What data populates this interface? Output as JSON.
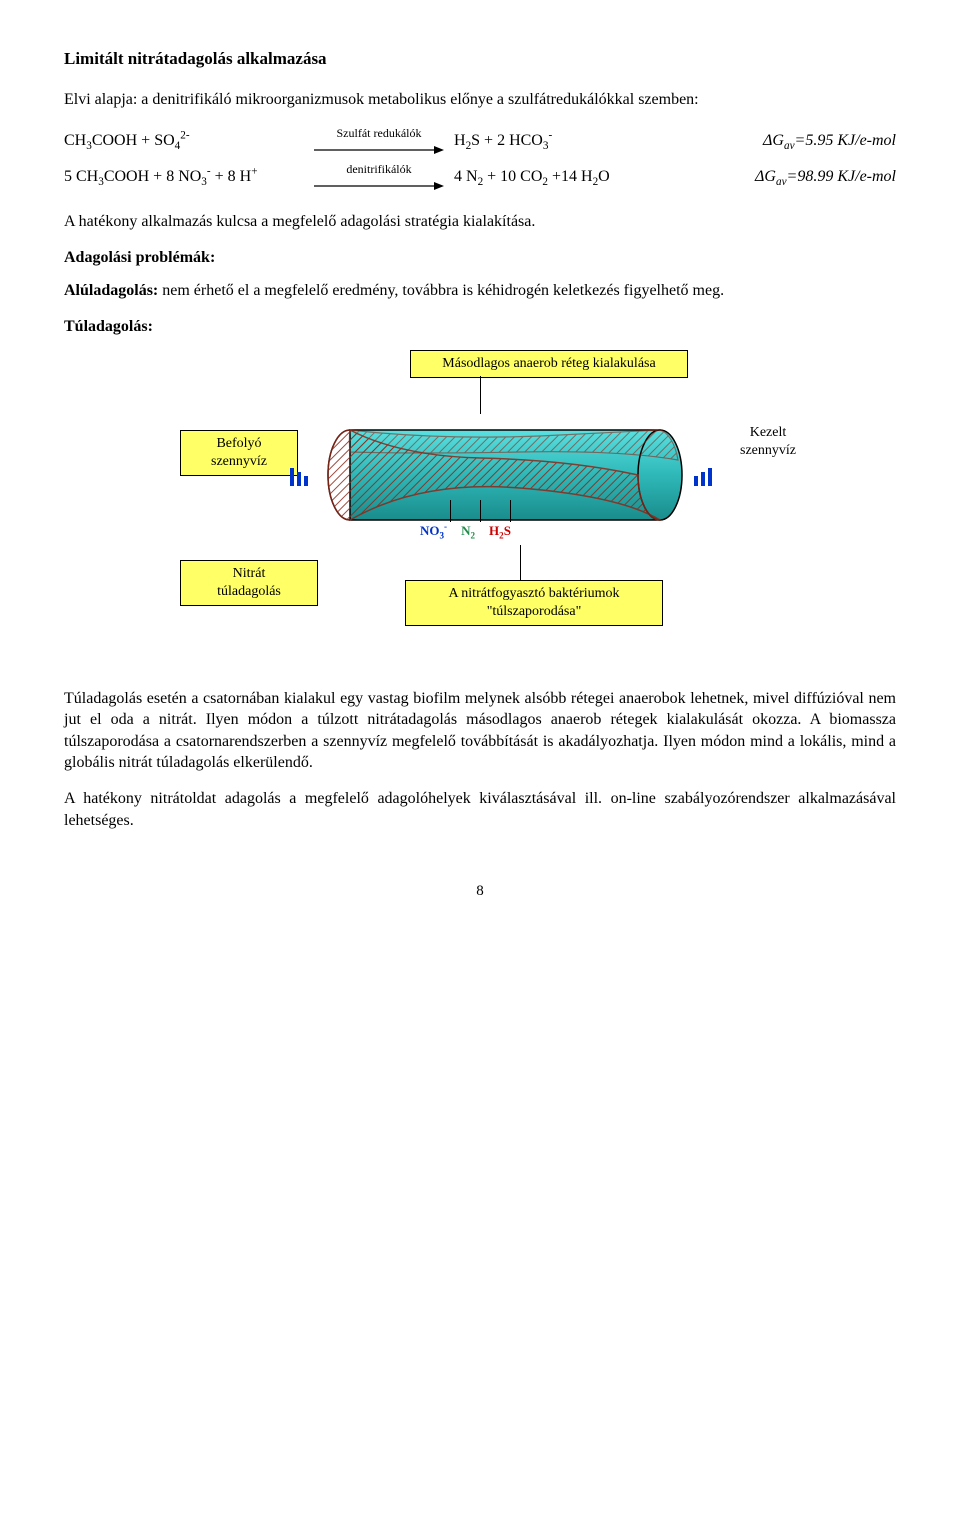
{
  "title": "Limitált nitrátadagolás alkalmazása",
  "intro": "Elvi alapja: a denitrifikáló mikroorganizmusok metabolikus előnye a szulfátredukálókkal szemben:",
  "eq": {
    "row1": {
      "left_html": "CH<sub>3</sub>COOH + SO<sub>4</sub><sup>2-</sup>",
      "mid_label": "Szulfát redukálók",
      "right_html": "H<sub>2</sub>S + 2 HCO<sub>3</sub><sup>-</sup>",
      "far_html": "<i>&Delta;G<sub>av</sub>=5.95 KJ/e-mol</i>"
    },
    "row2": {
      "left_html": "5 CH<sub>3</sub>COOH + 8 NO<sub>3</sub><sup>-</sup> + 8 H<sup>+</sup>",
      "mid_label": "denitrifikálók",
      "right_html": "4 N<sub>2</sub> + 10 CO<sub>2</sub> +14 H<sub>2</sub>O",
      "far_html": "<i>&Delta;G<sub>av</sub>=98.99 KJ/e-mol</i>"
    }
  },
  "after_eq": "A hatékony alkalmazás kulcsa a megfelelő adagolási stratégia kialakítása.",
  "problems_heading": "Adagolási problémák:",
  "under_label": "Alúladagolás:",
  "under_text": " nem érhető el a megfelelő eredmény, továbbra is kéhidrogén keletkezés figyelhető meg.",
  "over_label": "Túladagolás:",
  "diagram": {
    "top_box": "Másodlagos anaerob réteg kialakulása",
    "left_box": "Befolyó\nszennyvíz",
    "right_box": "Kezelt\nszennyvíz",
    "bottom_left_box": "Nitrát\ntúladagolás",
    "bottom_center_box": "A nitrátfogyasztó baktériumok \"túlszaporodása\"",
    "chem": {
      "no3_html": "NO<sub>3</sub><sup>-</sup>",
      "n2_html": "N<sub>2</sub>",
      "h2s_html": "H<sub>2</sub>S"
    },
    "colors": {
      "box_bg": "#ffff66",
      "pipe_fill": "#3ec6c6",
      "pipe_stroke": "#1aa3a3",
      "hatch": "#8b2a1a",
      "bar": "#0033cc"
    }
  },
  "para_after_diagram": "Túladagolás esetén a csatornában kialakul egy vastag biofilm melynek alsóbb rétegei anaerobok lehetnek, mivel diffúzióval nem jut el oda a nitrát. Ilyen módon a túlzott nitrátadagolás másodlagos anaerob rétegek kialakulását okozza. A biomassza túlszaporodása a csatornarendszerben a szennyvíz megfelelő továbbítását is akadályozhatja. Ilyen módon mind a lokális, mind a globális nitrát túladagolás elkerülendő.",
  "last_para": "A hatékony nitrátoldat adagolás a megfelelő adagolóhelyek kiválasztásával ill. on-line szabályozórendszer alkalmazásával lehetséges.",
  "page_number": "8"
}
